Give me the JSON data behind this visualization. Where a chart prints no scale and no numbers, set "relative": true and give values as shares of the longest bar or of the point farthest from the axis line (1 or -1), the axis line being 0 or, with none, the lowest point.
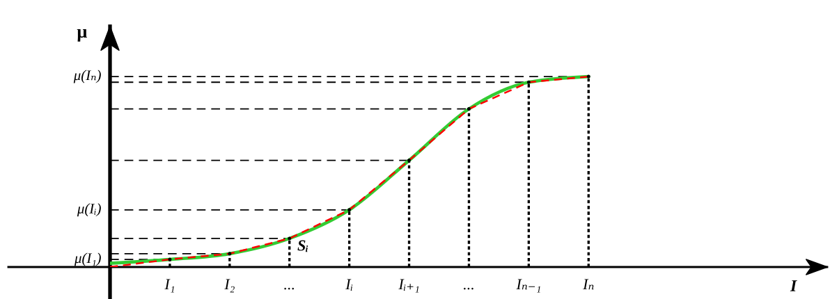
{
  "chart_data": {
    "type": "line",
    "relative": true,
    "ylabel": "μ",
    "categories": [
      null,
      "I₁",
      "I₂",
      "...",
      "Iᵢ",
      "Iᵢ₊₁",
      "...",
      "Iₙ₋₁",
      "Iₙ"
    ],
    "series": [
      {
        "color": "#33cc33",
        "line_style": "solid",
        "values": [
          0.02,
          0.04,
          0.07,
          0.15,
          0.3,
          0.56,
          0.83,
          0.97,
          1
        ]
      },
      {
        "color": "#ff0000",
        "line_style": "dashed",
        "values": [
          0,
          0.04,
          0.07,
          0.15,
          0.3,
          0.56,
          0.83,
          0.97,
          1
        ]
      },
      {
        "type": "lollipop",
        "color": "#000000",
        "line_style": "dotted",
        "values": [
          null,
          0.04,
          0.07,
          0.15,
          0.3,
          0.56,
          0.83,
          0.97,
          1
        ]
      }
    ],
    "ref_lines": [
      {
        "axis": "y",
        "value": 0.04,
        "label": "μ(I₁)",
        "color": "#000000",
        "line_style": "dashed"
      },
      {
        "axis": "y",
        "value": 0.07,
        "color": "#000000",
        "line_style": "dashed"
      },
      {
        "axis": "y",
        "value": 0.15,
        "color": "#000000",
        "line_style": "dashed"
      },
      {
        "axis": "y",
        "value": 0.3,
        "label": "μ(Iᵢ)",
        "color": "#000000",
        "line_style": "dashed"
      },
      {
        "axis": "y",
        "value": 0.56,
        "color": "#000000",
        "line_style": "dashed"
      },
      {
        "axis": "y",
        "value": 0.83,
        "color": "#000000",
        "line_style": "dashed"
      },
      {
        "axis": "y",
        "value": 0.97,
        "color": "#000000",
        "line_style": "dashed"
      },
      {
        "axis": "y",
        "value": 1,
        "label": "μ(Iₙ)",
        "color": "#000000",
        "line_style": "dashed"
      }
    ],
    "annotations": [
      "Sᵢ",
      "I"
    ]
  }
}
